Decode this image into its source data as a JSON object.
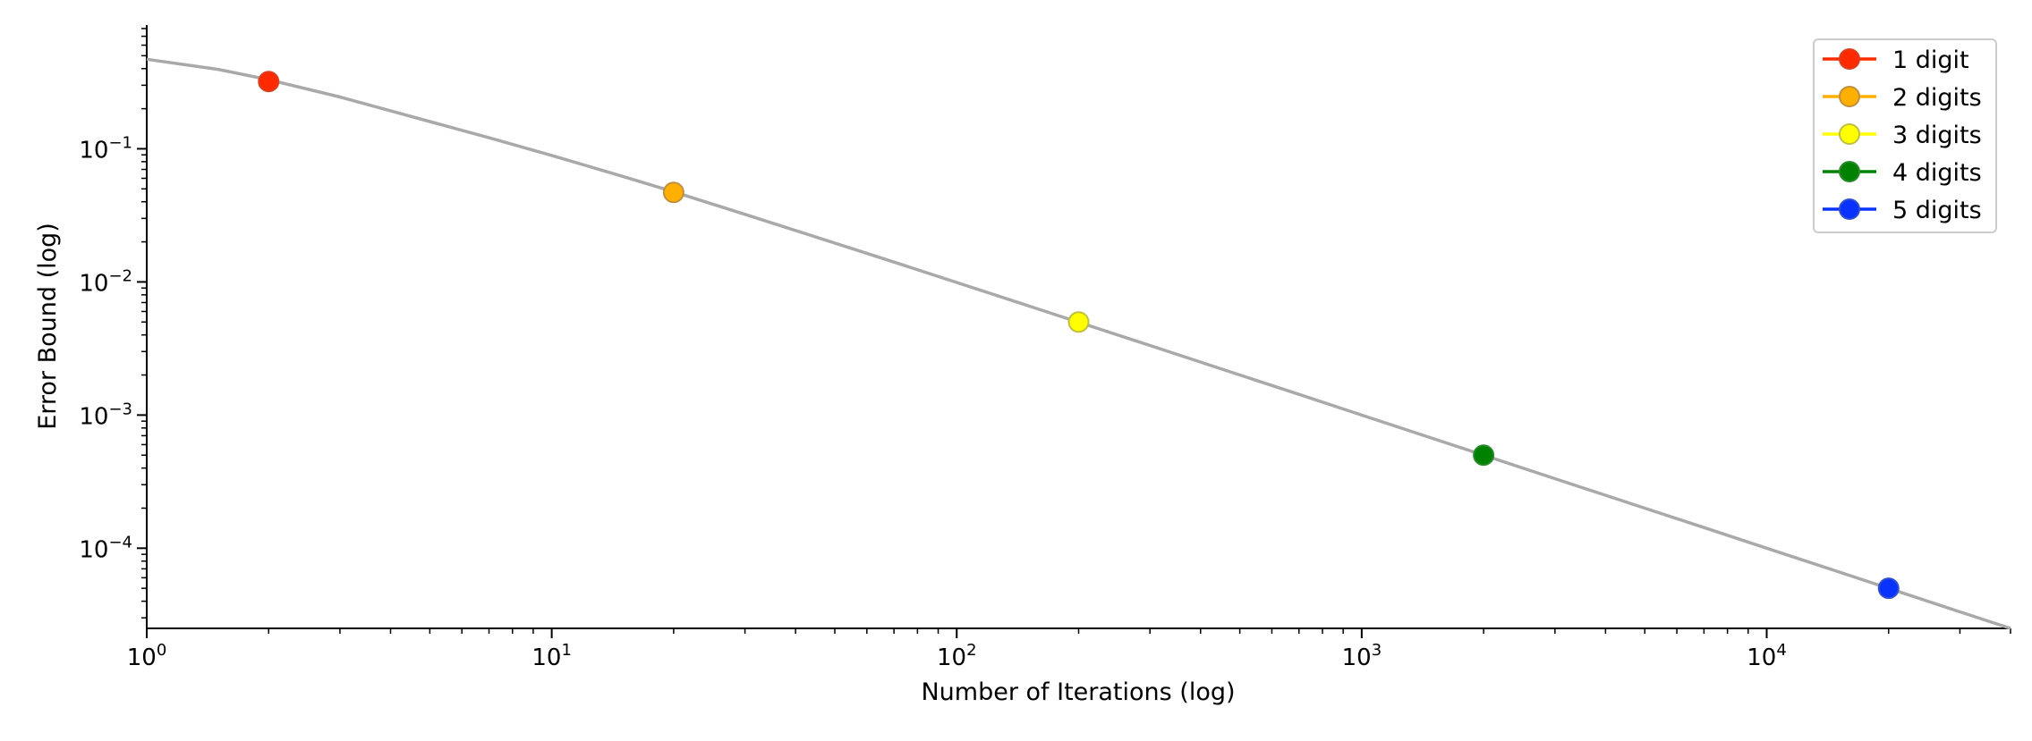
{
  "chart_data": {
    "type": "scatter",
    "title": "",
    "xlabel": "Number of Iterations (log)",
    "ylabel": "Error Bound (log)",
    "x_scale": "log",
    "y_scale": "log",
    "xlim": [
      1,
      40000
    ],
    "ylim": [
      2.5e-05,
      0.85
    ],
    "grid": false,
    "legend_position": "top-right",
    "x_ticks": [
      {
        "value": 1,
        "base": "10",
        "exp": "0"
      },
      {
        "value": 10,
        "base": "10",
        "exp": "1"
      },
      {
        "value": 100,
        "base": "10",
        "exp": "2"
      },
      {
        "value": 1000,
        "base": "10",
        "exp": "3"
      },
      {
        "value": 10000,
        "base": "10",
        "exp": "4"
      }
    ],
    "y_ticks": [
      {
        "value": 0.1,
        "base": "10",
        "exp": "−1"
      },
      {
        "value": 0.01,
        "base": "10",
        "exp": "−2"
      },
      {
        "value": 0.001,
        "base": "10",
        "exp": "−3"
      },
      {
        "value": 0.0001,
        "base": "10",
        "exp": "−4"
      }
    ],
    "curve": {
      "color": "#a9a9a9",
      "x": [
        1,
        1.5,
        2,
        3,
        5,
        7,
        10,
        15,
        20,
        30,
        50,
        70,
        100,
        150,
        200,
        300,
        500,
        700,
        1000,
        1500,
        2000,
        3000,
        5000,
        7000,
        10000,
        15000,
        20000,
        30000,
        40000
      ],
      "y": [
        0.47,
        0.395,
        0.33,
        0.245,
        0.16,
        0.121,
        0.0891,
        0.062,
        0.0475,
        0.0322,
        0.0196,
        0.0141,
        0.00991,
        0.00663,
        0.00498,
        0.00333,
        0.002,
        0.00143,
        0.001,
        0.000667,
        0.0005,
        0.000333,
        0.0002,
        0.000143,
        0.0001,
        6.67e-05,
        5e-05,
        3.33e-05,
        2.5e-05
      ]
    },
    "series": [
      {
        "name": "1 digit",
        "x": [
          2
        ],
        "y": [
          0.32
        ],
        "color": "#ff2a00",
        "edge": "#d94020"
      },
      {
        "name": "2 digits",
        "x": [
          20
        ],
        "y": [
          0.047
        ],
        "color": "#ffaf00",
        "edge": "#bf9040"
      },
      {
        "name": "3 digits",
        "x": [
          200
        ],
        "y": [
          0.005
        ],
        "color": "#ffff00",
        "edge": "#bfbf40"
      },
      {
        "name": "4 digits",
        "x": [
          2000
        ],
        "y": [
          0.0005
        ],
        "color": "#008200",
        "edge": "#2a8a2a"
      },
      {
        "name": "5 digits",
        "x": [
          20000
        ],
        "y": [
          5e-05
        ],
        "color": "#0a32ff",
        "edge": "#3050d0"
      }
    ]
  }
}
